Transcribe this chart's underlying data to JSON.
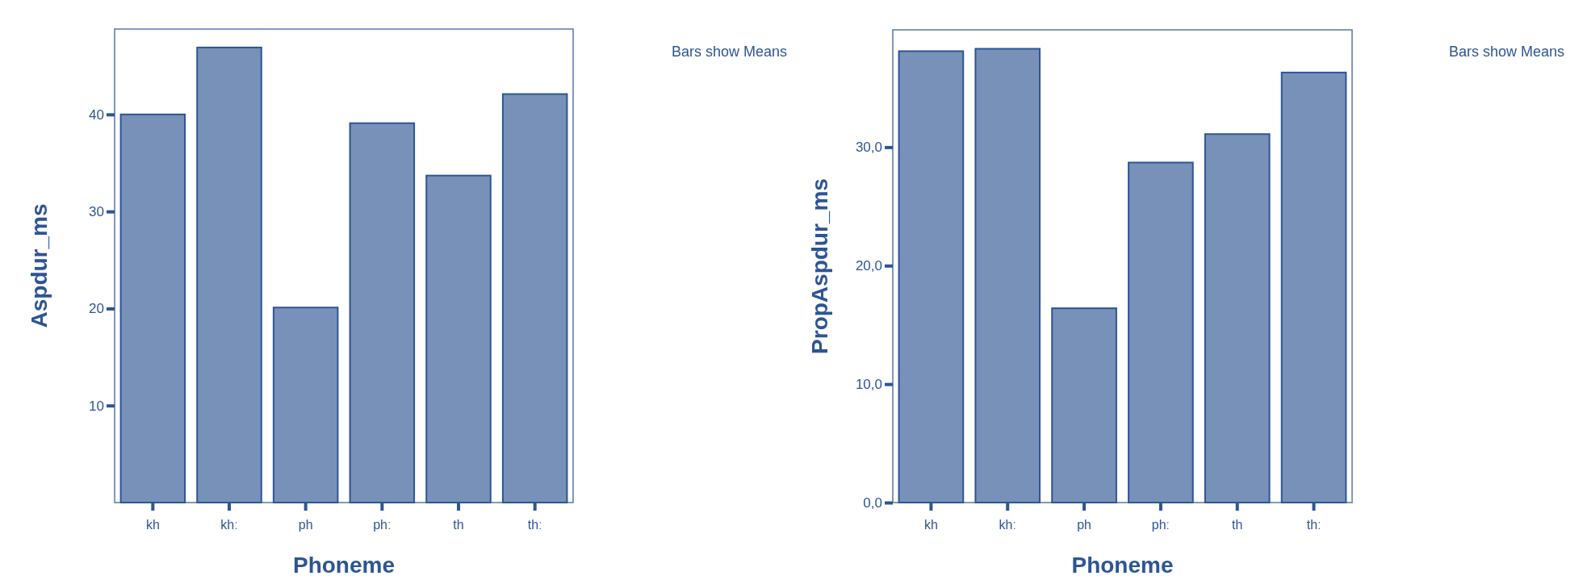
{
  "chart_data": [
    {
      "type": "bar",
      "xlabel": "Phoneme",
      "ylabel": "Aspdur_ms",
      "categories": [
        "kh",
        "khː",
        "ph",
        "phː",
        "th",
        "thː"
      ],
      "values": [
        40.0,
        46.9,
        20.1,
        39.1,
        33.7,
        42.1
      ],
      "color": "#7891b8",
      "ylim": [
        0,
        48.8
      ],
      "yticks": [
        10,
        20,
        30,
        40
      ],
      "grid": false,
      "legend": false,
      "annotations": [
        "Bars show Means"
      ]
    },
    {
      "type": "bar",
      "xlabel": "Phoneme",
      "ylabel": "PropAspdur_ms",
      "categories": [
        "kh",
        "khː",
        "ph",
        "phː",
        "th",
        "thː"
      ],
      "values": [
        38.1,
        38.3,
        16.4,
        28.7,
        31.1,
        36.3
      ],
      "color": "#7891b8",
      "ylim": [
        0,
        39.9
      ],
      "yticks": [
        {
          "value": 0,
          "label": "0,0"
        },
        {
          "value": 10,
          "label": "10,0"
        },
        {
          "value": 20,
          "label": "20,0"
        },
        {
          "value": 30,
          "label": "30,0"
        }
      ],
      "grid": false,
      "legend": false,
      "annotations": [
        "Bars show Means"
      ]
    }
  ]
}
